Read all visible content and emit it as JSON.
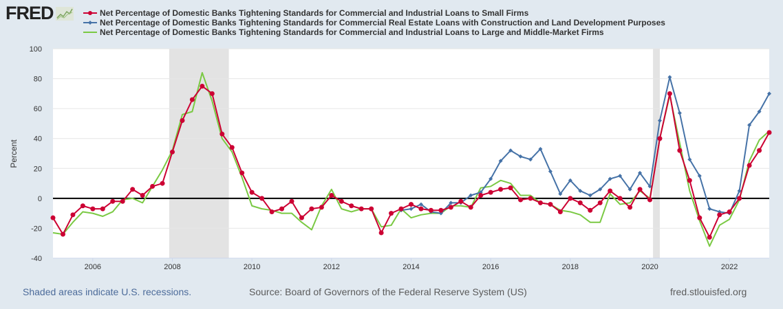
{
  "logo": {
    "text": "FRED",
    "icon": "fred-chart-icon"
  },
  "footer": {
    "recession_note": "Shaded areas indicate U.S. recessions.",
    "source": "Source: Board of Governors of the Federal Reserve System (US)",
    "site": "fred.stlouisfed.org"
  },
  "chart_data": {
    "type": "line",
    "title": "",
    "xlabel": "",
    "ylabel": "Percent",
    "xlim": [
      2005.0,
      2023.0
    ],
    "ylim": [
      -40,
      100
    ],
    "yticks": [
      -40,
      -20,
      0,
      20,
      40,
      60,
      80,
      100
    ],
    "xticks": [
      2006,
      2008,
      2010,
      2012,
      2014,
      2016,
      2018,
      2020,
      2022
    ],
    "grid": true,
    "zero_line": true,
    "legend_placement": "top",
    "recessions": [
      [
        2007.92,
        2009.42
      ],
      [
        2020.08,
        2020.25
      ]
    ],
    "x_start": 2005.0,
    "x_step": 0.25,
    "series": [
      {
        "name": "Net Percentage of Domestic Banks Tightening Standards for Commercial and Industrial Loans to Small Firms",
        "color": "#cc0033",
        "marker": "circle",
        "start_index": 0,
        "values": [
          -13,
          -24,
          -11,
          -5,
          -7,
          -7,
          -2,
          -2,
          6,
          2,
          8,
          10,
          31,
          52,
          66,
          75,
          70,
          43,
          34,
          17,
          4,
          0,
          -9,
          -7,
          -2,
          -13,
          -7,
          -6,
          2,
          -2,
          -5,
          -7,
          -7,
          -23,
          -10,
          -7,
          -4,
          -7,
          -8,
          -8,
          -6,
          -2,
          -6,
          2,
          4,
          6,
          7,
          -1,
          0,
          -3,
          -4,
          -9,
          0,
          -3,
          -8,
          -3,
          5,
          0,
          -6,
          6,
          -1,
          40,
          70,
          32,
          12,
          -13,
          -26,
          -11,
          -9,
          0,
          22,
          32,
          44
        ]
      },
      {
        "name": "Net Percentage of Domestic Banks Tightening Standards for Commercial Real Estate Loans with Construction and Land Development Purposes",
        "color": "#4572a7",
        "marker": "diamond",
        "start_index": 35,
        "values": [
          -8,
          -7,
          -4,
          -9,
          -10,
          -3,
          -3,
          2,
          4,
          13,
          25,
          32,
          28,
          26,
          33,
          18,
          3,
          12,
          5,
          2,
          6,
          13,
          15,
          6,
          17,
          8,
          52,
          81,
          57,
          26,
          15,
          -7,
          -9,
          -10,
          5,
          49,
          58,
          70
        ]
      },
      {
        "name": "Net Percentage of Domestic Banks Tightening Standards for Commercial and Industrial Loans to Large and Middle-Market Firms",
        "color": "#7ac943",
        "marker": "none",
        "start_index": 0,
        "values": [
          -23,
          -24,
          -16,
          -9,
          -10,
          -12,
          -9,
          -1,
          0,
          -3,
          8,
          19,
          32,
          56,
          58,
          84,
          65,
          40,
          31,
          14,
          -5,
          -7,
          -8,
          -10,
          -10,
          -16,
          -21,
          -5,
          6,
          -7,
          -9,
          -7,
          -7,
          -19,
          -18,
          -7,
          -13,
          -11,
          -10,
          -10,
          -5,
          -5,
          -6,
          7,
          8,
          12,
          10,
          2,
          2,
          -3,
          -4,
          -8,
          -9,
          -11,
          -16,
          -16,
          3,
          -4,
          -3,
          5,
          0,
          40,
          69,
          37,
          5,
          -15,
          -32,
          -18,
          -14,
          -1,
          25,
          39,
          45
        ]
      }
    ]
  }
}
